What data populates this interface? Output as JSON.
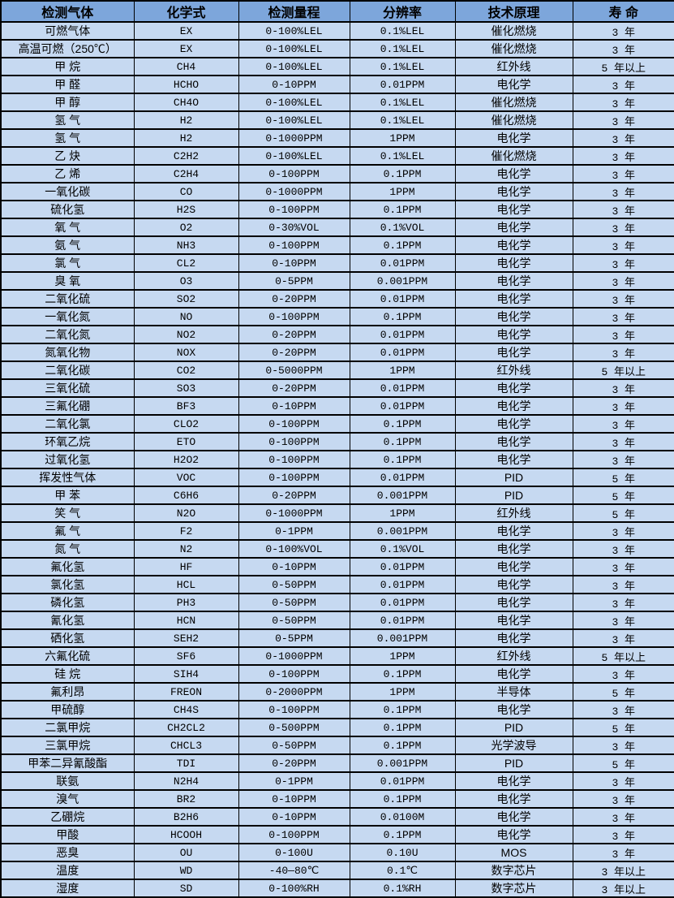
{
  "colors": {
    "header_bg": "#7da6db",
    "row_bg": "#c6d9f1",
    "border": "#000000",
    "text": "#000000"
  },
  "table": {
    "headers": [
      "检测气体",
      "化学式",
      "检测量程",
      "分辨率",
      "技术原理",
      "寿 命"
    ],
    "rows": [
      [
        "可燃气体",
        "EX",
        "0-100%LEL",
        "0.1%LEL",
        "催化燃烧",
        "3 年"
      ],
      [
        "高温可燃（250℃）",
        "EX",
        "0-100%LEL",
        "0.1%LEL",
        "催化燃烧",
        "3 年"
      ],
      [
        "甲 烷",
        "CH4",
        "0-100%LEL",
        "0.1%LEL",
        "红外线",
        "5 年以上"
      ],
      [
        "甲 醛",
        "HCHO",
        "0-10PPM",
        "0.01PPM",
        "电化学",
        "3 年"
      ],
      [
        "甲 醇",
        "CH4O",
        "0-100%LEL",
        "0.1%LEL",
        "催化燃烧",
        "3 年"
      ],
      [
        "氢 气",
        "H2",
        "0-100%LEL",
        "0.1%LEL",
        "催化燃烧",
        "3 年"
      ],
      [
        "氢 气",
        "H2",
        "0-1000PPM",
        "1PPM",
        "电化学",
        "3 年"
      ],
      [
        "乙 炔",
        "C2H2",
        "0-100%LEL",
        "0.1%LEL",
        "催化燃烧",
        "3 年"
      ],
      [
        "乙 烯",
        "C2H4",
        "0-100PPM",
        "0.1PPM",
        "电化学",
        "3 年"
      ],
      [
        "一氧化碳",
        "CO",
        "0-1000PPM",
        "1PPM",
        "电化学",
        "3 年"
      ],
      [
        "硫化氢",
        "H2S",
        "0-100PPM",
        "0.1PPM",
        "电化学",
        "3 年"
      ],
      [
        "氧 气",
        "O2",
        "0-30%VOL",
        "0.1%VOL",
        "电化学",
        "3 年"
      ],
      [
        "氨 气",
        "NH3",
        "0-100PPM",
        "0.1PPM",
        "电化学",
        "3 年"
      ],
      [
        "氯 气",
        "CL2",
        "0-10PPM",
        "0.01PPM",
        "电化学",
        "3 年"
      ],
      [
        "臭 氧",
        "O3",
        "0-5PPM",
        "0.001PPM",
        "电化学",
        "3 年"
      ],
      [
        "二氧化硫",
        "SO2",
        "0-20PPM",
        "0.01PPM",
        "电化学",
        "3 年"
      ],
      [
        "一氧化氮",
        "NO",
        "0-100PPM",
        "0.1PPM",
        "电化学",
        "3 年"
      ],
      [
        "二氧化氮",
        "NO2",
        "0-20PPM",
        "0.01PPM",
        "电化学",
        "3 年"
      ],
      [
        "氮氧化物",
        "NOX",
        "0-20PPM",
        "0.01PPM",
        "电化学",
        "3 年"
      ],
      [
        "二氧化碳",
        "CO2",
        "0-5000PPM",
        "1PPM",
        "红外线",
        "5 年以上"
      ],
      [
        "三氧化硫",
        "SO3",
        "0-20PPM",
        "0.01PPM",
        "电化学",
        "3 年"
      ],
      [
        "三氟化硼",
        "BF3",
        "0-10PPM",
        "0.01PPM",
        "电化学",
        "3 年"
      ],
      [
        "二氧化氯",
        "CLO2",
        "0-100PPM",
        "0.1PPM",
        "电化学",
        "3 年"
      ],
      [
        "环氧乙烷",
        "ETO",
        "0-100PPM",
        "0.1PPM",
        "电化学",
        "3 年"
      ],
      [
        "过氧化氢",
        "H2O2",
        "0-100PPM",
        "0.1PPM",
        "电化学",
        "3 年"
      ],
      [
        "挥发性气体",
        "VOC",
        "0-100PPM",
        "0.01PPM",
        "PID",
        "5 年"
      ],
      [
        "甲 苯",
        "C6H6",
        "0-20PPM",
        "0.001PPM",
        "PID",
        "5 年"
      ],
      [
        "笑 气",
        "N2O",
        "0-1000PPM",
        "1PPM",
        "红外线",
        "5 年"
      ],
      [
        "氟 气",
        "F2",
        "0-1PPM",
        "0.001PPM",
        "电化学",
        "3 年"
      ],
      [
        "氮 气",
        "N2",
        "0-100%VOL",
        "0.1%VOL",
        "电化学",
        "3 年"
      ],
      [
        "氟化氢",
        "HF",
        "0-10PPM",
        "0.01PPM",
        "电化学",
        "3 年"
      ],
      [
        "氯化氢",
        "HCL",
        "0-50PPM",
        "0.01PPM",
        "电化学",
        "3 年"
      ],
      [
        "磷化氢",
        "PH3",
        "0-50PPM",
        "0.01PPM",
        "电化学",
        "3 年"
      ],
      [
        "氰化氢",
        "HCN",
        "0-50PPM",
        "0.01PPM",
        "电化学",
        "3 年"
      ],
      [
        "硒化氢",
        "SEH2",
        "0-5PPM",
        "0.001PPM",
        "电化学",
        "3 年"
      ],
      [
        "六氟化硫",
        "SF6",
        "0-1000PPM",
        "1PPM",
        "红外线",
        "5 年以上"
      ],
      [
        "硅 烷",
        "SIH4",
        "0-100PPM",
        "0.1PPM",
        "电化学",
        "3 年"
      ],
      [
        "氟利昂",
        "FREON",
        "0-2000PPM",
        "1PPM",
        "半导体",
        "5 年"
      ],
      [
        "甲硫醇",
        "CH4S",
        "0-100PPM",
        "0.1PPM",
        "电化学",
        "3 年"
      ],
      [
        "二氯甲烷",
        "CH2CL2",
        "0-500PPM",
        "0.1PPM",
        "PID",
        "5 年"
      ],
      [
        "三氯甲烷",
        "CHCL3",
        "0-50PPM",
        "0.1PPM",
        "光学波导",
        "3 年"
      ],
      [
        "甲苯二异氰酸酯",
        "TDI",
        "0-20PPM",
        "0.001PPM",
        "PID",
        "5 年"
      ],
      [
        "联氨",
        "N2H4",
        "0-1PPM",
        "0.01PPM",
        "电化学",
        "3 年"
      ],
      [
        "溴气",
        "BR2",
        "0-10PPM",
        "0.1PPM",
        "电化学",
        "3 年"
      ],
      [
        "乙硼烷",
        "B2H6",
        "0-10PPM",
        "0.0100M",
        "电化学",
        "3 年"
      ],
      [
        "甲酸",
        "HCOOH",
        "0-100PPM",
        "0.1PPM",
        "电化学",
        "3 年"
      ],
      [
        "恶臭",
        "OU",
        "0-100U",
        "0.10U",
        "MOS",
        "3 年"
      ],
      [
        "温度",
        "WD",
        "-40—80℃",
        "0.1℃",
        "数字芯片",
        "3 年以上"
      ],
      [
        "湿度",
        "SD",
        "0-100%RH",
        "0.1%RH",
        "数字芯片",
        "3 年以上"
      ]
    ]
  }
}
